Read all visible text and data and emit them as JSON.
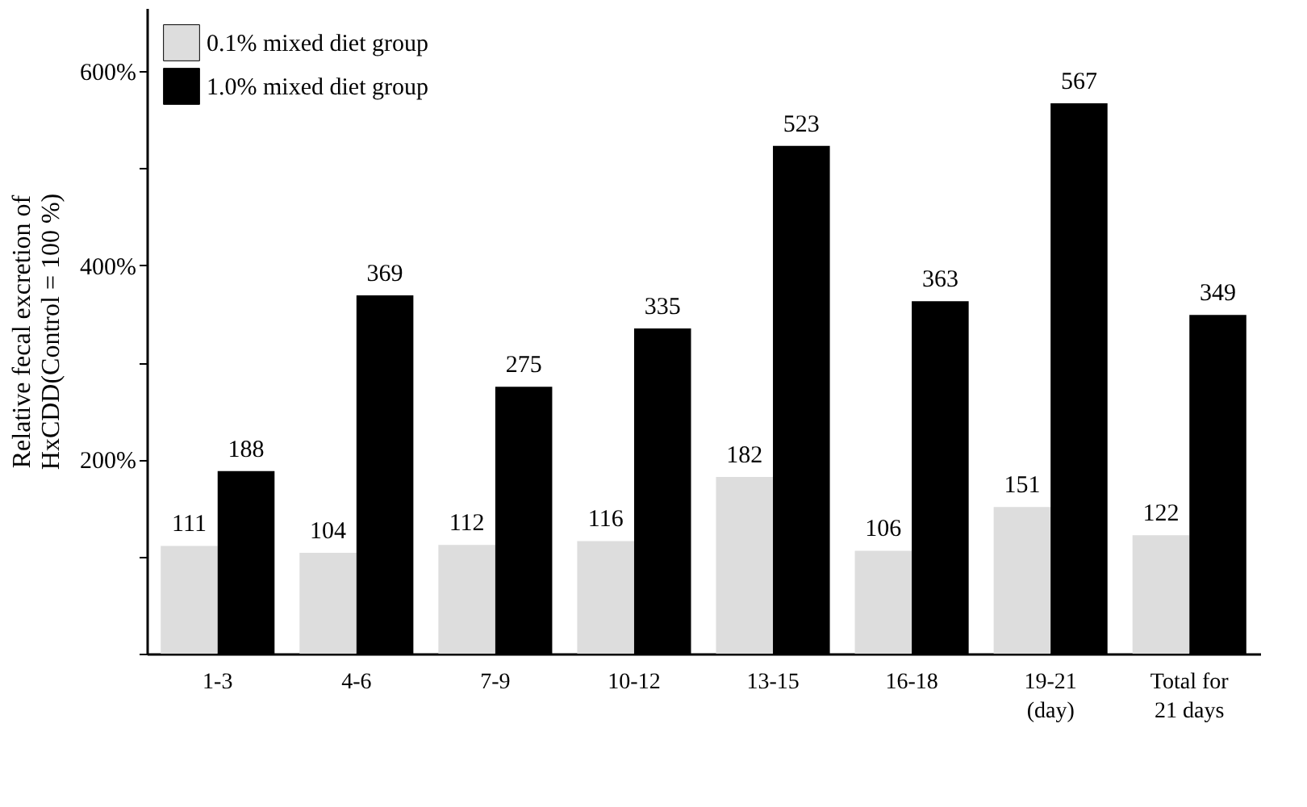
{
  "chart_data": {
    "type": "bar",
    "ylabel": "Relative fecal excretion of\nHxCDD(Control = 100 %)",
    "categories": [
      "1-3",
      "4-6",
      "7-9",
      "10-12",
      "13-15",
      "16-18",
      "19-21\n(day)",
      "Total for\n21 days"
    ],
    "series": [
      {
        "name": "0.1% mixed diet group",
        "color": "#dddddd",
        "values": [
          111,
          104,
          112,
          116,
          182,
          106,
          151,
          122
        ]
      },
      {
        "name": "1.0% mixed diet group",
        "color": "#000000",
        "values": [
          188,
          369,
          275,
          335,
          523,
          363,
          567,
          349
        ]
      }
    ],
    "ylim": [
      0,
      665
    ],
    "yticks": [
      {
        "value": 0,
        "label": null
      },
      {
        "value": 100,
        "label": null
      },
      {
        "value": 200,
        "label": "200%"
      },
      {
        "value": 300,
        "label": null
      },
      {
        "value": 400,
        "label": "400%"
      },
      {
        "value": 500,
        "label": null
      },
      {
        "value": 600,
        "label": "600%"
      }
    ],
    "data_labels": true,
    "legend": "top left",
    "grid": false
  }
}
